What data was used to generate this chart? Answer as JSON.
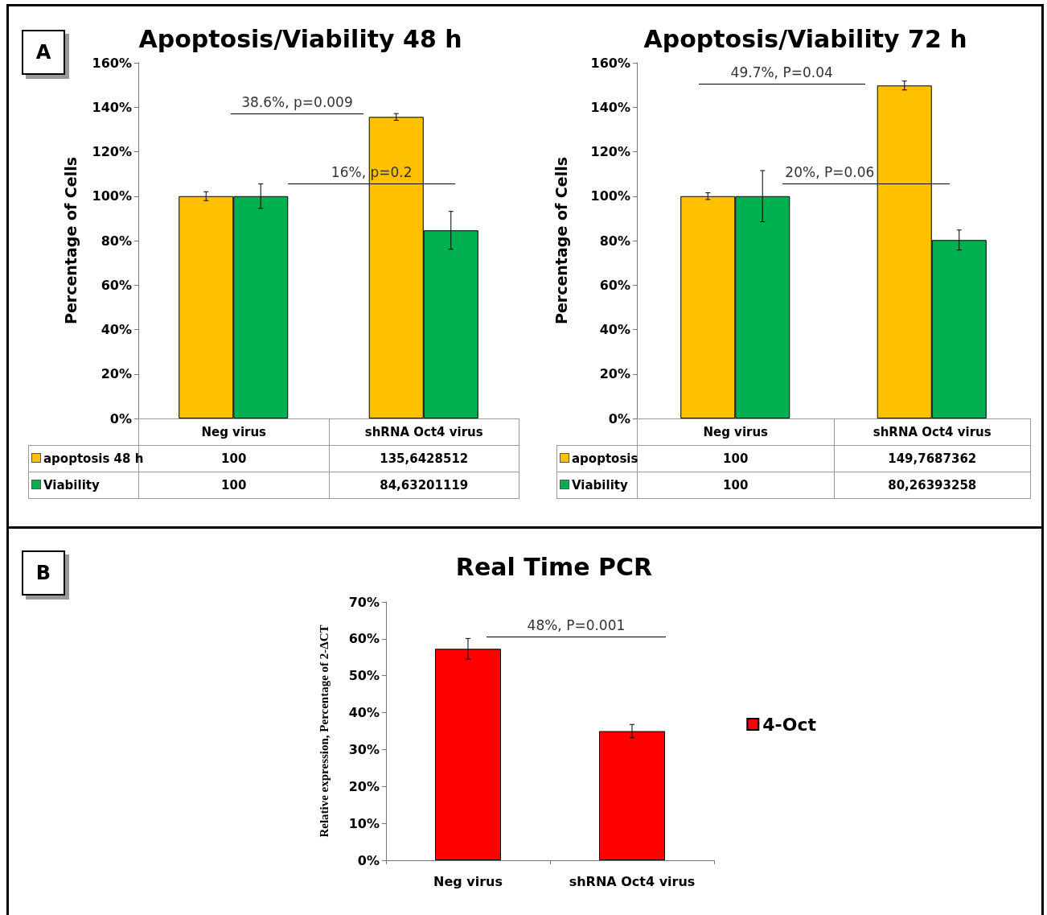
{
  "chart_data": [
    {
      "type": "bar",
      "title": "Apoptosis/Viability 48 h",
      "ylabel": "Percentage of Cells",
      "categories": [
        "Neg  virus",
        "shRNA Oct4 virus"
      ],
      "series": [
        {
          "name": "apoptosis 48 h",
          "color": "#ffc000",
          "values": [
            100,
            135.6428512
          ],
          "errors": [
            2,
            1.5
          ],
          "value_labels": [
            "100",
            "135,6428512"
          ]
        },
        {
          "name": "Viability",
          "color": "#00b050",
          "values": [
            100,
            84.63201119
          ],
          "errors": [
            5.5,
            8.5
          ],
          "value_labels": [
            "100",
            "84,63201119"
          ]
        }
      ],
      "ylim": [
        0,
        160
      ],
      "yticks": [
        {
          "value": 0,
          "label": "0%"
        },
        {
          "value": 20,
          "label": "20%"
        },
        {
          "value": 40,
          "label": "40%"
        },
        {
          "value": 60,
          "label": "60%"
        },
        {
          "value": 80,
          "label": "80%"
        },
        {
          "value": 100,
          "label": "100%"
        },
        {
          "value": 120,
          "label": "120%"
        },
        {
          "value": 140,
          "label": "140%"
        },
        {
          "value": 160,
          "label": "160%"
        }
      ],
      "legend": "bottom",
      "annotations": [
        "A",
        "38.6%, p=0.009",
        "16%, p=0.2"
      ]
    },
    {
      "type": "bar",
      "title": "Apoptosis/Viability 72 h",
      "ylabel": "Percentage of Cells",
      "categories": [
        "Neg virus",
        "shRNA Oct4 virus"
      ],
      "series": [
        {
          "name": "apoptosis",
          "color": "#ffc000",
          "values": [
            100,
            149.7687362
          ],
          "errors": [
            1.5,
            2
          ],
          "value_labels": [
            "100",
            "149,7687362"
          ]
        },
        {
          "name": "Viability",
          "color": "#00b050",
          "values": [
            100,
            80.26393258
          ],
          "errors": [
            11.5,
            4.5
          ],
          "value_labels": [
            "100",
            "80,26393258"
          ]
        }
      ],
      "ylim": [
        0,
        160
      ],
      "yticks": [
        {
          "value": 0,
          "label": "0%"
        },
        {
          "value": 20,
          "label": "20%"
        },
        {
          "value": 40,
          "label": "40%"
        },
        {
          "value": 60,
          "label": "60%"
        },
        {
          "value": 80,
          "label": "80%"
        },
        {
          "value": 100,
          "label": "100%"
        },
        {
          "value": 120,
          "label": "120%"
        },
        {
          "value": 140,
          "label": "140%"
        },
        {
          "value": 160,
          "label": "160%"
        }
      ],
      "legend": "bottom",
      "annotations": [
        "49.7%, P=0.04",
        "20%, P=0.06"
      ]
    },
    {
      "type": "bar",
      "title": "Real Time PCR",
      "ylabel": "Relative expression, Percentage of 2-ΔCT",
      "categories": [
        "Neg virus",
        "shRNA Oct4 virus"
      ],
      "series": [
        {
          "name": "4-Oct",
          "color": "#ff0000",
          "values": [
            57.3,
            35
          ],
          "errors": [
            2.8,
            1.8
          ]
        }
      ],
      "ylim": [
        0,
        70
      ],
      "yticks": [
        {
          "value": 0,
          "label": "0%"
        },
        {
          "value": 10,
          "label": "10%"
        },
        {
          "value": 20,
          "label": "20%"
        },
        {
          "value": 30,
          "label": "30%"
        },
        {
          "value": 40,
          "label": "40%"
        },
        {
          "value": 50,
          "label": "50%"
        },
        {
          "value": 60,
          "label": "60%"
        },
        {
          "value": 70,
          "label": "70%"
        }
      ],
      "legend": "right",
      "annotations": [
        "B",
        "48%, P=0.001"
      ]
    }
  ]
}
